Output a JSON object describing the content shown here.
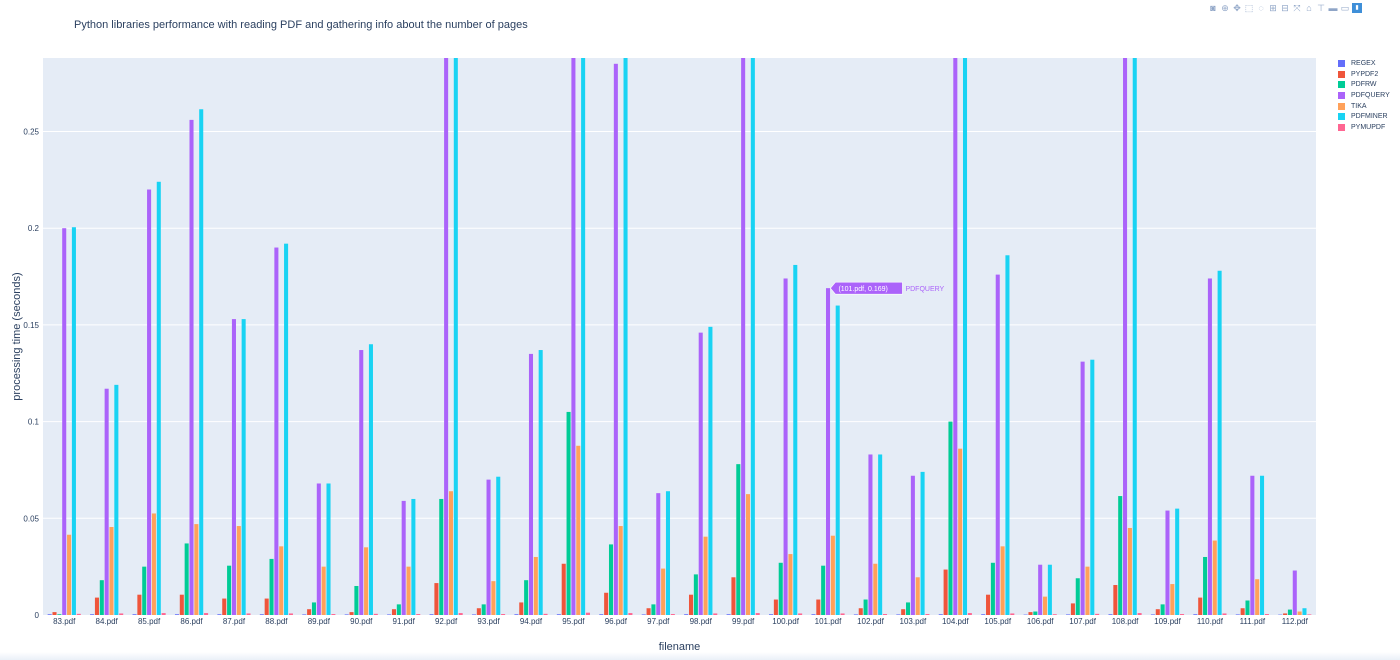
{
  "modebar": {
    "buttons": [
      {
        "name": "camera-icon",
        "glyph": "◙"
      },
      {
        "name": "zoom-icon",
        "glyph": "⊕"
      },
      {
        "name": "pan-icon",
        "glyph": "✥"
      },
      {
        "name": "box-select-icon",
        "glyph": "⬚"
      },
      {
        "name": "lasso-select-icon",
        "glyph": "◌"
      },
      {
        "name": "zoom-in-icon",
        "glyph": "⊞"
      },
      {
        "name": "zoom-out-icon",
        "glyph": "⊟"
      },
      {
        "name": "autoscale-icon",
        "glyph": "⤧"
      },
      {
        "name": "reset-axes-icon",
        "glyph": "⌂"
      },
      {
        "name": "spike-lines-icon",
        "glyph": "⊤"
      },
      {
        "name": "hover-closest-icon",
        "glyph": "▬"
      },
      {
        "name": "hover-compare-icon",
        "glyph": "▭"
      },
      {
        "name": "plotly-logo-icon",
        "glyph": "▮"
      }
    ]
  },
  "chart_data": {
    "type": "bar",
    "title": "Python libraries performance with reading PDF and gathering info about the number of pages",
    "xlabel": "filename",
    "ylabel": "processing time (seconds)",
    "ylim": [
      0,
      0.288
    ],
    "yticks": [
      0,
      0.05,
      0.1,
      0.15,
      0.2,
      0.25
    ],
    "ytick_labels": [
      "0",
      "0.05",
      "0.1",
      "0.15",
      "0.2",
      "0.25"
    ],
    "grid": true,
    "legend_position": "top-right",
    "categories": [
      "83.pdf",
      "84.pdf",
      "85.pdf",
      "86.pdf",
      "87.pdf",
      "88.pdf",
      "89.pdf",
      "90.pdf",
      "91.pdf",
      "92.pdf",
      "93.pdf",
      "94.pdf",
      "95.pdf",
      "96.pdf",
      "97.pdf",
      "98.pdf",
      "99.pdf",
      "100.pdf",
      "101.pdf",
      "102.pdf",
      "103.pdf",
      "104.pdf",
      "105.pdf",
      "106.pdf",
      "107.pdf",
      "108.pdf",
      "109.pdf",
      "110.pdf",
      "111.pdf",
      "112.pdf"
    ],
    "series": [
      {
        "name": "REGEX",
        "color": "#636efa",
        "values": [
          0.0004,
          0.0004,
          0.0004,
          0.0004,
          0.0004,
          0.0004,
          0.0003,
          0.0003,
          0.0003,
          0.0004,
          0.0003,
          0.0004,
          0.0004,
          0.0004,
          0.0003,
          0.0004,
          0.0004,
          0.0004,
          0.0004,
          0.0003,
          0.0003,
          0.0004,
          0.0004,
          0.0002,
          0.0003,
          0.0004,
          0.0003,
          0.0004,
          0.0003,
          0.0002
        ]
      },
      {
        "name": "PYPDF2",
        "color": "#EF553B",
        "values": [
          0.0015,
          0.009,
          0.0105,
          0.0105,
          0.0085,
          0.0085,
          0.003,
          0.0015,
          0.003,
          0.0165,
          0.0035,
          0.0065,
          0.0265,
          0.0115,
          0.0035,
          0.0105,
          0.0195,
          0.008,
          0.008,
          0.0035,
          0.003,
          0.0235,
          0.0105,
          0.0015,
          0.006,
          0.0155,
          0.003,
          0.009,
          0.0035,
          0.0008
        ]
      },
      {
        "name": "PDFRW",
        "color": "#00cc96",
        "values": [
          0.0004,
          0.018,
          0.025,
          0.037,
          0.0255,
          0.029,
          0.0065,
          0.015,
          0.0055,
          0.06,
          0.0055,
          0.018,
          0.105,
          0.0365,
          0.0055,
          0.021,
          0.078,
          0.027,
          0.0255,
          0.008,
          0.0065,
          0.1,
          0.027,
          0.0018,
          0.019,
          0.0615,
          0.0055,
          0.03,
          0.0075,
          0.0028
        ]
      },
      {
        "name": "PDFQUERY",
        "color": "#ab63fa",
        "values": [
          0.2,
          0.117,
          0.22,
          0.256,
          0.153,
          0.19,
          0.068,
          0.137,
          0.059,
          0.288,
          0.07,
          0.135,
          0.288,
          0.285,
          0.063,
          0.146,
          0.288,
          0.174,
          0.169,
          0.083,
          0.072,
          0.288,
          0.176,
          0.026,
          0.131,
          0.288,
          0.054,
          0.174,
          0.072,
          0.023
        ]
      },
      {
        "name": "TIKA",
        "color": "#FFA15A",
        "values": [
          0.0415,
          0.0455,
          0.0525,
          0.047,
          0.046,
          0.0355,
          0.025,
          0.035,
          0.025,
          0.064,
          0.0175,
          0.03,
          0.0875,
          0.046,
          0.024,
          0.0405,
          0.0625,
          0.0315,
          0.041,
          0.0265,
          0.0195,
          0.086,
          0.0355,
          0.0095,
          0.025,
          0.045,
          0.016,
          0.0385,
          0.0185,
          0.0018
        ]
      },
      {
        "name": "PDFMINER",
        "color": "#19d3f3",
        "values": [
          0.2005,
          0.119,
          0.224,
          0.2615,
          0.153,
          0.192,
          0.068,
          0.14,
          0.06,
          0.288,
          0.0715,
          0.137,
          0.288,
          0.288,
          0.064,
          0.149,
          0.288,
          0.181,
          0.16,
          0.083,
          0.074,
          0.288,
          0.186,
          0.026,
          0.132,
          0.288,
          0.055,
          0.178,
          0.072,
          0.0035
        ]
      },
      {
        "name": "PYMUPDF",
        "color": "#FF6692",
        "values": [
          0.0006,
          0.0008,
          0.001,
          0.001,
          0.0008,
          0.0008,
          0.0005,
          0.0006,
          0.0005,
          0.001,
          0.0005,
          0.0006,
          0.0012,
          0.001,
          0.0005,
          0.0008,
          0.001,
          0.0008,
          0.0008,
          0.0005,
          0.0005,
          0.001,
          0.0008,
          0.0004,
          0.0006,
          0.001,
          0.0005,
          0.0008,
          0.0005,
          0.0003
        ]
      }
    ],
    "hover_label": {
      "category": "101.pdf",
      "value": 0.169,
      "series": "PDFQUERY",
      "color": "#ab63fa"
    }
  }
}
